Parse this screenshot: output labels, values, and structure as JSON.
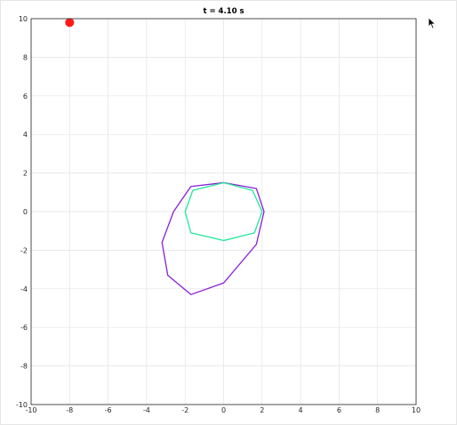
{
  "chart_data": {
    "type": "line",
    "title": "t = 4.10 s",
    "xlabel": "",
    "ylabel": "",
    "xlim": [
      -10,
      10
    ],
    "ylim": [
      -10,
      10
    ],
    "xticks": [
      -10,
      -8,
      -6,
      -4,
      -2,
      0,
      2,
      4,
      6,
      8,
      10
    ],
    "yticks": [
      -10,
      -8,
      -6,
      -4,
      -2,
      0,
      2,
      4,
      6,
      8,
      10
    ],
    "grid": true,
    "series": [
      {
        "color": "#8a1fd8",
        "closed": true,
        "x": [
          0.0,
          1.7,
          2.1,
          1.7,
          0.0,
          -1.7,
          -2.9,
          -3.2,
          -2.6,
          -1.7
        ],
        "y": [
          1.5,
          1.2,
          0.0,
          -1.7,
          -3.7,
          -4.3,
          -3.3,
          -1.6,
          0.0,
          1.3
        ]
      },
      {
        "color": "#1fe89a",
        "closed": true,
        "x": [
          0.0,
          1.5,
          2.0,
          1.6,
          0.0,
          -1.7,
          -2.0,
          -1.6
        ],
        "y": [
          1.5,
          1.1,
          0.0,
          -1.1,
          -1.5,
          -1.1,
          0.0,
          1.1
        ]
      },
      {
        "type": "scatter",
        "color": "#ff1a1a",
        "x": [
          -8.0
        ],
        "y": [
          9.8
        ]
      }
    ],
    "cursor_icon": "mouse-pointer-icon"
  }
}
